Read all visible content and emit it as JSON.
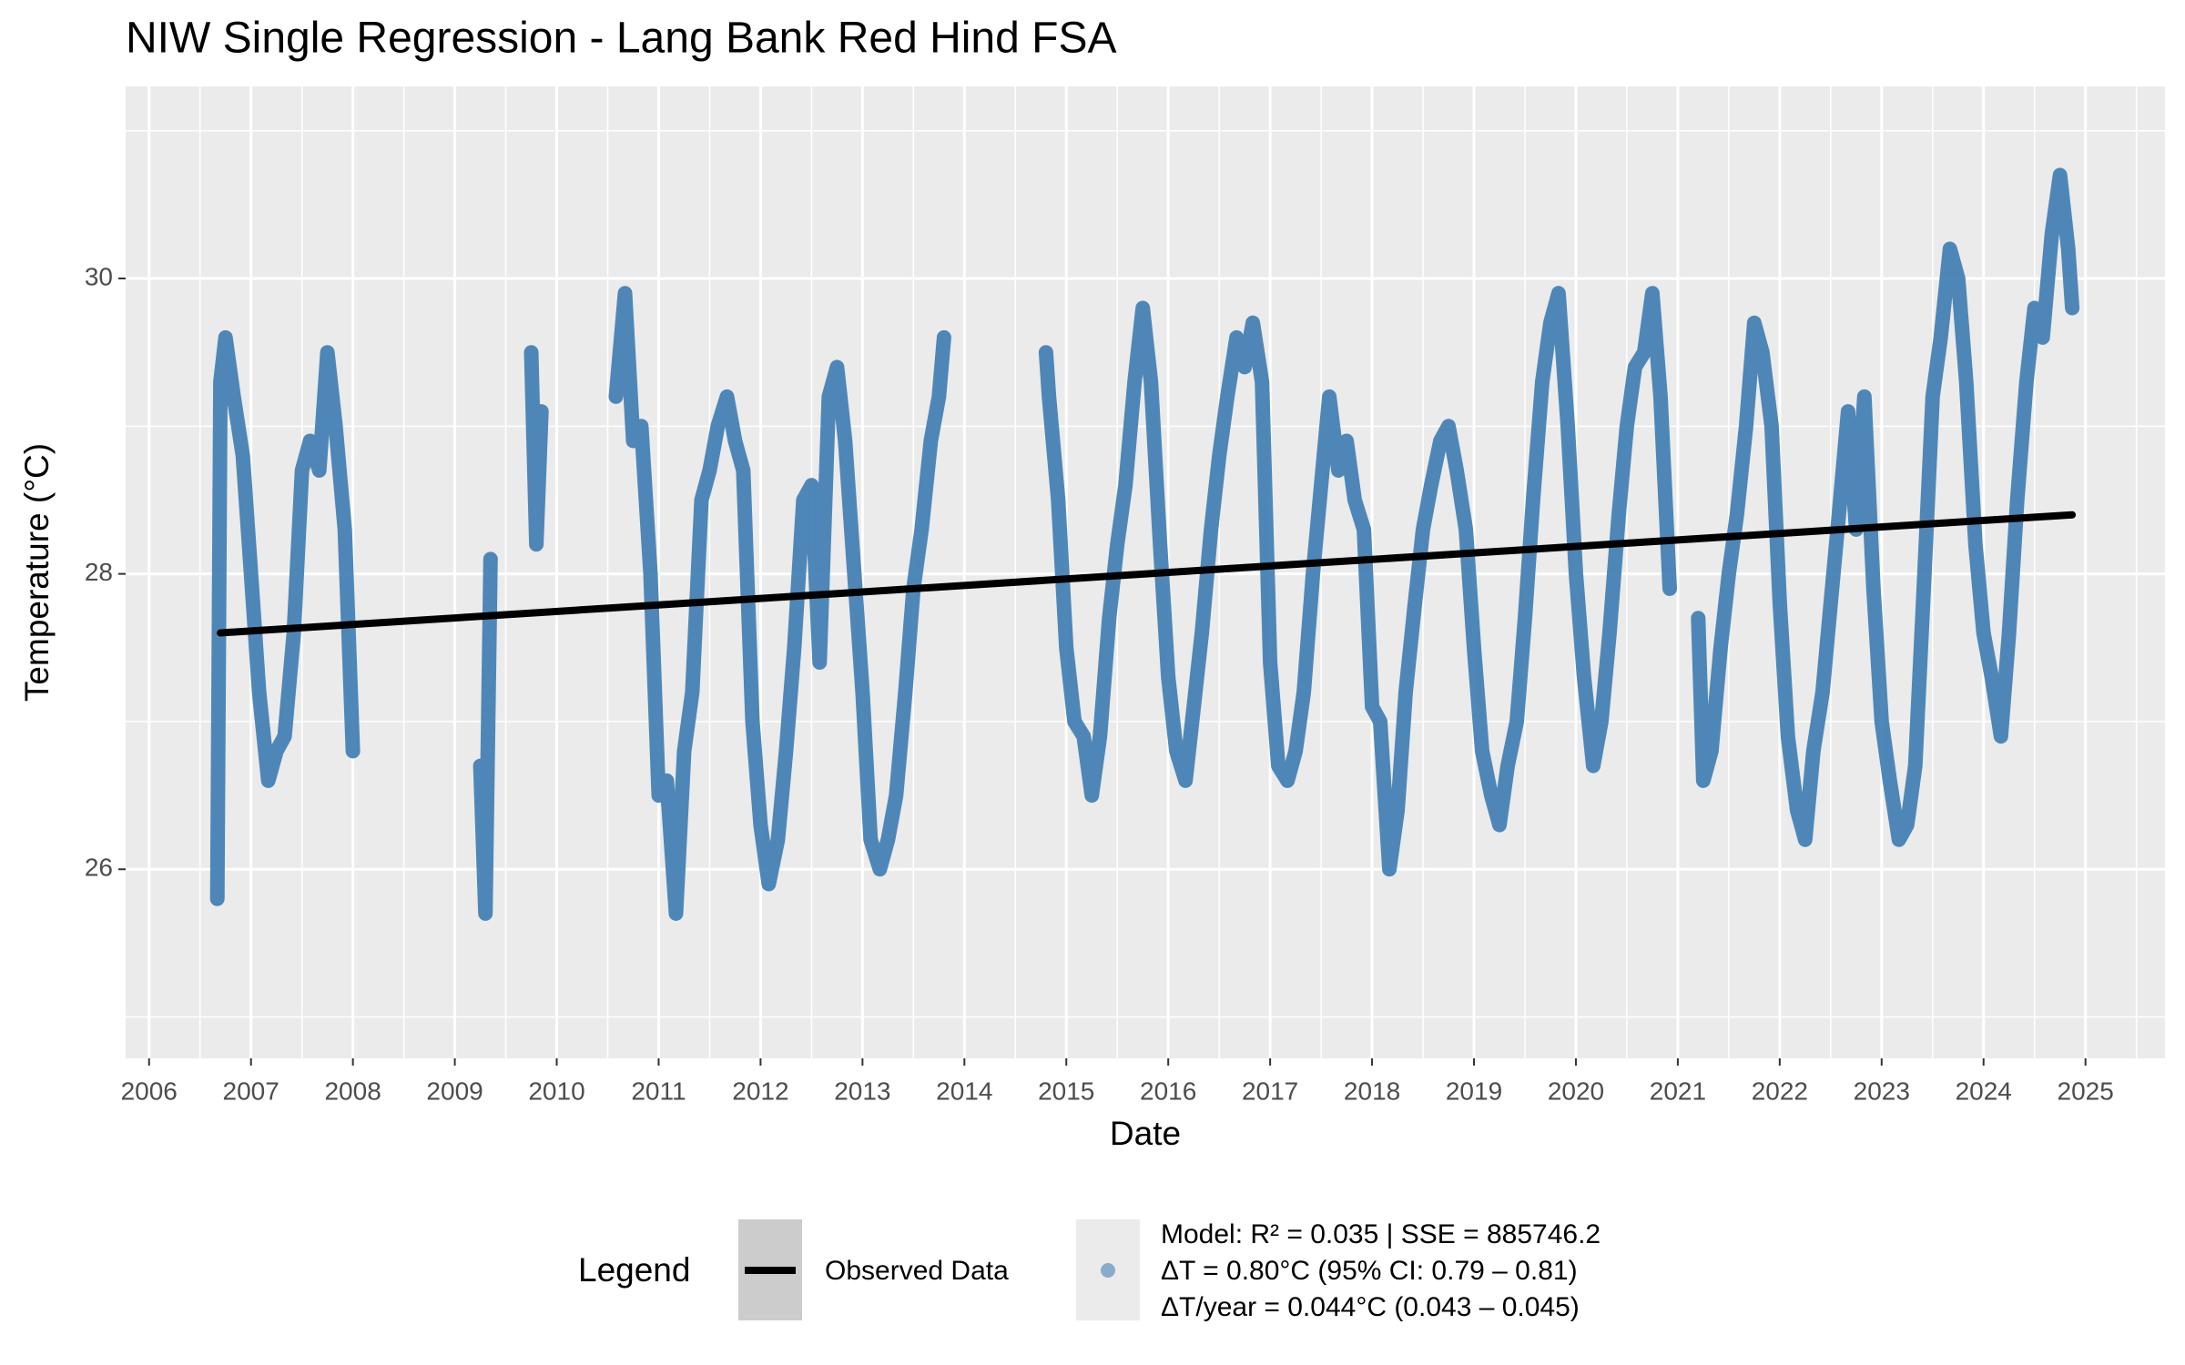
{
  "chart_data": {
    "type": "line",
    "title": "NIW Single Regression - Lang Bank Red Hind FSA",
    "x_label": "Date",
    "y_label": "Temperature (°C)",
    "xlim": [
      2005.77,
      2025.78
    ],
    "ylim": [
      24.72,
      31.3
    ],
    "xticks": [
      2006,
      2007,
      2008,
      2009,
      2010,
      2011,
      2012,
      2013,
      2014,
      2015,
      2016,
      2017,
      2018,
      2019,
      2020,
      2021,
      2022,
      2023,
      2024,
      2025
    ],
    "yticks": [
      26,
      28,
      30
    ],
    "grid": true,
    "series": [
      {
        "color": "#4682b4",
        "style": "points",
        "x": [
          2006.67,
          2006.7,
          2006.75,
          2006.83,
          2006.92,
          2007.0,
          2007.08,
          2007.17,
          2007.25,
          2007.33,
          2007.42,
          2007.5,
          2007.58,
          2007.67,
          2007.75,
          2007.83,
          2007.92,
          2008.0,
          null,
          2009.25,
          2009.3,
          2009.35,
          null,
          2009.75,
          2009.8,
          2009.85,
          null,
          2010.58,
          2010.67,
          2010.75,
          2010.83,
          2010.92,
          2011.0,
          2011.08,
          2011.17,
          2011.25,
          2011.33,
          2011.42,
          2011.5,
          2011.58,
          2011.67,
          2011.75,
          2011.83,
          2011.92,
          2012.0,
          2012.08,
          2012.17,
          2012.25,
          2012.33,
          2012.42,
          2012.5,
          2012.58,
          2012.67,
          2012.75,
          2012.83,
          2012.92,
          2013.0,
          2013.08,
          2013.17,
          2013.25,
          2013.33,
          2013.42,
          2013.5,
          2013.58,
          2013.67,
          2013.75,
          2013.8,
          null,
          2014.8,
          2014.83,
          2014.92,
          2015.0,
          2015.08,
          2015.17,
          2015.25,
          2015.33,
          2015.42,
          2015.5,
          2015.58,
          2015.67,
          2015.75,
          2015.83,
          2015.92,
          2016.0,
          2016.08,
          2016.17,
          2016.25,
          2016.33,
          2016.42,
          2016.5,
          2016.58,
          2016.67,
          2016.75,
          2016.83,
          2016.92,
          2017.0,
          2017.08,
          2017.17,
          2017.25,
          2017.33,
          2017.42,
          2017.5,
          2017.58,
          2017.67,
          2017.75,
          2017.83,
          2017.92,
          2018.0,
          2018.08,
          2018.17,
          2018.25,
          2018.33,
          2018.42,
          2018.5,
          2018.58,
          2018.67,
          2018.75,
          2018.83,
          2018.92,
          2019.0,
          2019.08,
          2019.17,
          2019.25,
          2019.33,
          2019.42,
          2019.5,
          2019.58,
          2019.67,
          2019.75,
          2019.83,
          2019.92,
          2020.0,
          2020.08,
          2020.17,
          2020.25,
          2020.33,
          2020.42,
          2020.5,
          2020.58,
          2020.67,
          2020.75,
          2020.83,
          2020.92,
          null,
          2021.2,
          2021.25,
          2021.33,
          2021.42,
          2021.5,
          2021.58,
          2021.67,
          2021.75,
          2021.83,
          2021.92,
          2022.0,
          2022.08,
          2022.17,
          2022.25,
          2022.33,
          2022.42,
          2022.5,
          2022.58,
          2022.67,
          2022.75,
          2022.83,
          2022.92,
          2023.0,
          2023.08,
          2023.17,
          2023.25,
          2023.33,
          2023.42,
          2023.5,
          2023.58,
          2023.67,
          2023.75,
          2023.83,
          2023.92,
          2024.0,
          2024.08,
          2024.17,
          2024.25,
          2024.33,
          2024.42,
          2024.5,
          2024.58,
          2024.67,
          2024.75,
          2024.83,
          2024.87
        ],
        "values": [
          25.8,
          29.3,
          29.6,
          29.2,
          28.8,
          28.0,
          27.2,
          26.6,
          26.8,
          26.9,
          27.6,
          28.7,
          28.9,
          28.7,
          29.5,
          29.0,
          28.3,
          26.8,
          null,
          26.7,
          25.7,
          28.1,
          null,
          29.5,
          28.2,
          29.1,
          null,
          29.2,
          29.9,
          28.9,
          29.0,
          28.0,
          26.5,
          26.6,
          25.7,
          26.8,
          27.2,
          28.5,
          28.7,
          29.0,
          29.2,
          28.9,
          28.7,
          27.0,
          26.3,
          25.9,
          26.2,
          26.8,
          27.5,
          28.5,
          28.6,
          27.4,
          29.2,
          29.4,
          28.9,
          28.0,
          27.2,
          26.2,
          26.0,
          26.2,
          26.5,
          27.2,
          27.9,
          28.3,
          28.9,
          29.2,
          29.6,
          null,
          29.5,
          29.2,
          28.5,
          27.5,
          27.0,
          26.9,
          26.5,
          26.9,
          27.7,
          28.2,
          28.6,
          29.3,
          29.8,
          29.3,
          28.2,
          27.3,
          26.8,
          26.6,
          27.1,
          27.6,
          28.3,
          28.8,
          29.2,
          29.6,
          29.4,
          29.7,
          29.3,
          27.4,
          26.7,
          26.6,
          26.8,
          27.2,
          28.0,
          28.6,
          29.2,
          28.7,
          28.9,
          28.5,
          28.3,
          27.1,
          27.0,
          26.0,
          26.4,
          27.2,
          27.8,
          28.3,
          28.6,
          28.9,
          29.0,
          28.7,
          28.3,
          27.5,
          26.8,
          26.5,
          26.3,
          26.7,
          27.0,
          27.7,
          28.5,
          29.3,
          29.7,
          29.9,
          29.0,
          28.0,
          27.3,
          26.7,
          27.0,
          27.6,
          28.4,
          29.0,
          29.4,
          29.5,
          29.9,
          29.2,
          27.9,
          null,
          27.7,
          26.6,
          26.8,
          27.5,
          28.0,
          28.4,
          29.0,
          29.7,
          29.5,
          29.0,
          27.8,
          26.9,
          26.4,
          26.2,
          26.8,
          27.2,
          27.8,
          28.4,
          29.1,
          28.3,
          29.2,
          27.9,
          27.0,
          26.6,
          26.2,
          26.3,
          26.7,
          28.0,
          29.2,
          29.6,
          30.2,
          30.0,
          29.3,
          28.2,
          27.6,
          27.3,
          26.9,
          27.6,
          28.5,
          29.3,
          29.8,
          29.6,
          30.3,
          30.7,
          30.2,
          29.8
        ]
      },
      {
        "color": "#000000",
        "style": "line",
        "x": [
          2006.7,
          2024.87
        ],
        "values": [
          27.6,
          28.4
        ]
      }
    ],
    "legend": {
      "title": "Legend",
      "items": [
        "Observed Data",
        "Model: R² = 0.035 | SSE = 885746.2",
        "ΔT = 0.80°C (95% CI: 0.79 – 0.81)",
        "ΔT/year = 0.044°C (0.043 – 0.045)"
      ]
    }
  }
}
